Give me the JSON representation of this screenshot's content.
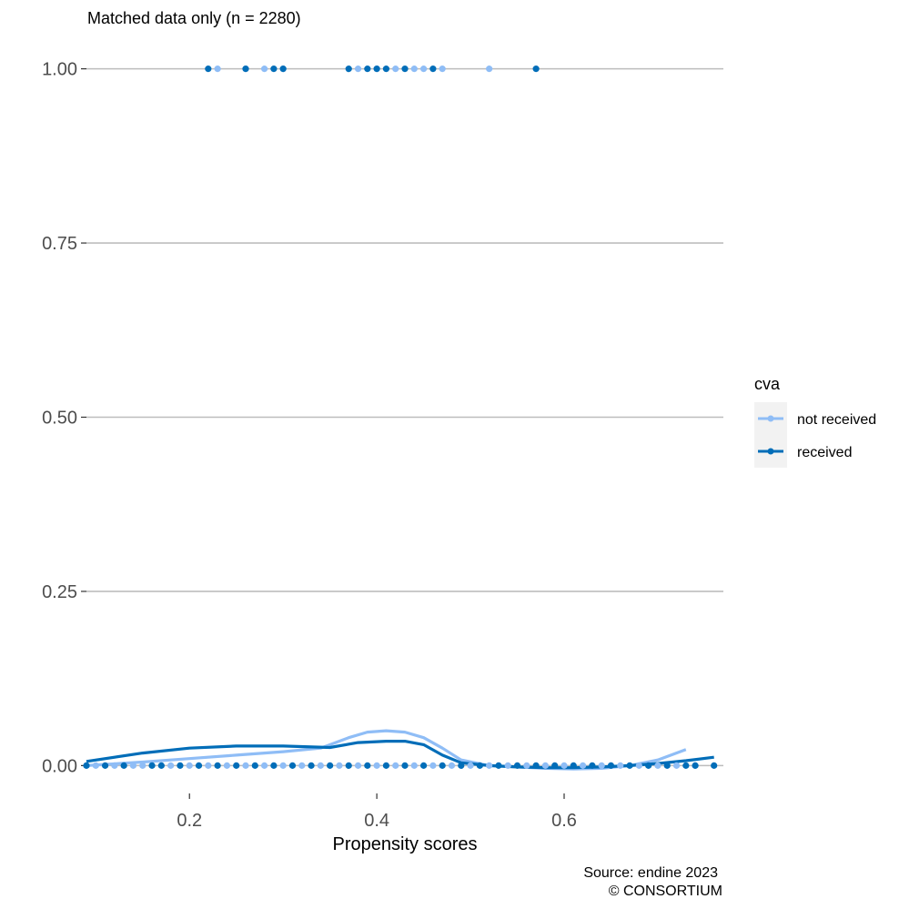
{
  "chart_data": {
    "type": "scatter",
    "title": "Matched data only (n = 2280)",
    "xlabel": "Propensity scores",
    "ylabel": "",
    "xlim": [
      0.09,
      0.77
    ],
    "ylim": [
      -0.04,
      1.04
    ],
    "x_ticks": [
      0.2,
      0.4,
      0.6
    ],
    "x_tick_labels": [
      "0.2",
      "0.4",
      "0.6"
    ],
    "y_ticks": [
      0.0,
      0.25,
      0.5,
      0.75,
      1.0
    ],
    "y_tick_labels": [
      "0.00",
      "0.25",
      "0.50",
      "0.75",
      "1.00"
    ],
    "grid": "horizontal major lines",
    "legend": {
      "title": "cva",
      "position": "right",
      "entries": [
        "not received",
        "received"
      ]
    },
    "caption_lines": [
      "Source: endine 2023",
      "© CONSORTIUM"
    ],
    "colors": {
      "not_received": "#8fbdf6",
      "received": "#006db8",
      "grid": "#bdbdbd",
      "legend_bg": "#f2f2f2"
    },
    "series": [
      {
        "name": "not received",
        "color": "#8fbdf6",
        "points_y1": [
          0.23,
          0.26,
          0.28,
          0.3,
          0.38,
          0.4,
          0.42,
          0.44,
          0.45,
          0.47,
          0.52
        ],
        "points_y0": [
          0.09,
          0.1,
          0.12,
          0.14,
          0.15,
          0.18,
          0.2,
          0.22,
          0.24,
          0.26,
          0.28,
          0.3,
          0.32,
          0.34,
          0.36,
          0.38,
          0.4,
          0.42,
          0.44,
          0.46,
          0.48,
          0.5,
          0.52,
          0.54,
          0.56,
          0.58,
          0.6,
          0.62,
          0.64,
          0.66,
          0.68,
          0.7,
          0.72,
          0.74
        ],
        "smooth_x": [
          0.09,
          0.15,
          0.2,
          0.25,
          0.3,
          0.34,
          0.37,
          0.39,
          0.41,
          0.43,
          0.45,
          0.47,
          0.49,
          0.52,
          0.55,
          0.58,
          0.61,
          0.64,
          0.67,
          0.7,
          0.73
        ],
        "smooth_y": [
          0.0,
          0.005,
          0.01,
          0.015,
          0.02,
          0.025,
          0.04,
          0.048,
          0.05,
          0.048,
          0.04,
          0.025,
          0.008,
          0.0,
          -0.002,
          -0.004,
          -0.005,
          -0.004,
          0.0,
          0.008,
          0.023
        ]
      },
      {
        "name": "received",
        "color": "#006db8",
        "points_y1": [
          0.22,
          0.26,
          0.29,
          0.3,
          0.37,
          0.39,
          0.4,
          0.41,
          0.43,
          0.46,
          0.57
        ],
        "points_y0": [
          0.09,
          0.11,
          0.13,
          0.16,
          0.17,
          0.19,
          0.21,
          0.23,
          0.25,
          0.27,
          0.29,
          0.31,
          0.33,
          0.35,
          0.37,
          0.39,
          0.41,
          0.43,
          0.45,
          0.47,
          0.49,
          0.51,
          0.53,
          0.55,
          0.57,
          0.59,
          0.61,
          0.63,
          0.65,
          0.67,
          0.69,
          0.71,
          0.73,
          0.74,
          0.76
        ],
        "smooth_x": [
          0.09,
          0.15,
          0.2,
          0.25,
          0.3,
          0.35,
          0.38,
          0.41,
          0.43,
          0.45,
          0.47,
          0.49,
          0.52,
          0.55,
          0.58,
          0.61,
          0.64,
          0.67,
          0.7,
          0.73,
          0.76
        ],
        "smooth_y": [
          0.006,
          0.018,
          0.025,
          0.028,
          0.028,
          0.026,
          0.033,
          0.035,
          0.035,
          0.03,
          0.015,
          0.004,
          0.0,
          -0.002,
          -0.003,
          -0.003,
          -0.002,
          0.0,
          0.003,
          0.007,
          0.012
        ]
      }
    ]
  }
}
